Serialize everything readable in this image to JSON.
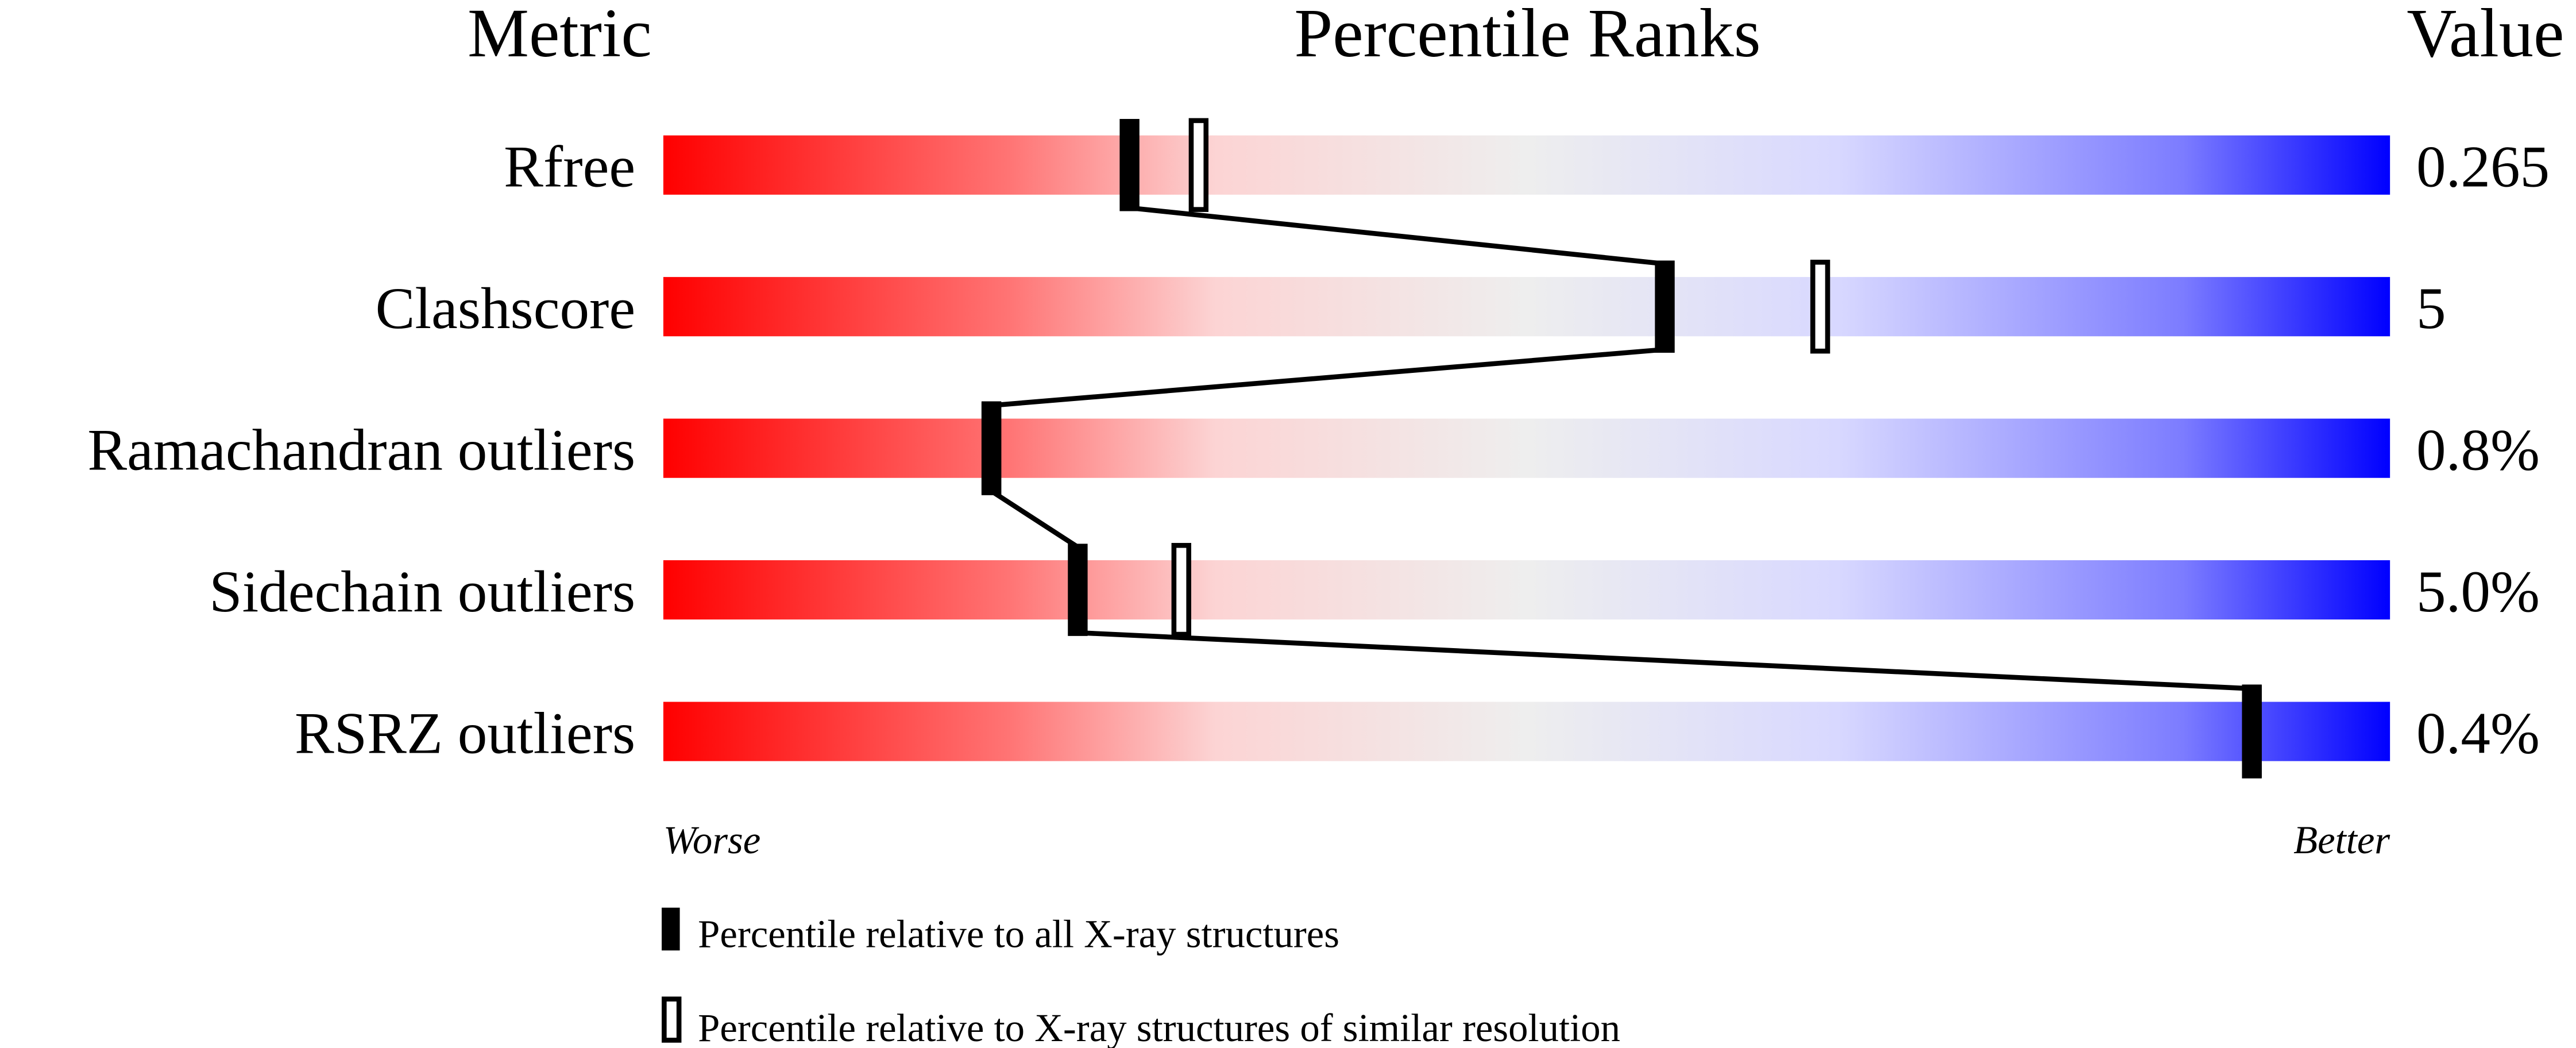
{
  "chart_data": {
    "type": "percentile-slider",
    "headers": {
      "metric": "Metric",
      "ranks": "Percentile Ranks",
      "value": "Value"
    },
    "xlim": [
      0,
      100
    ],
    "rows": [
      {
        "metric": "Rfree",
        "value": "0.265",
        "percentile_all": 27,
        "percentile_similar": 31
      },
      {
        "metric": "Clashscore",
        "value": "5",
        "percentile_all": 58,
        "percentile_similar": 67
      },
      {
        "metric": "Ramachandran outliers",
        "value": "0.8%",
        "percentile_all": 19,
        "percentile_similar": 19
      },
      {
        "metric": "Sidechain outliers",
        "value": "5.0%",
        "percentile_all": 24,
        "percentile_similar": 30
      },
      {
        "metric": "RSRZ outliers",
        "value": "0.4%",
        "percentile_all": 92,
        "percentile_similar": 92
      }
    ],
    "axis_labels": {
      "left": "Worse",
      "right": "Better"
    },
    "legend": [
      {
        "marker": "filled",
        "label": "Percentile relative to all X-ray structures"
      },
      {
        "marker": "open",
        "label": "Percentile relative to X-ray structures of similar resolution"
      }
    ],
    "gradient_colors": [
      "#ff0000",
      "#ff7474",
      "#fcd4d4",
      "#eeeeee",
      "#d8d8ff",
      "#7c7cff",
      "#0000ff"
    ]
  }
}
